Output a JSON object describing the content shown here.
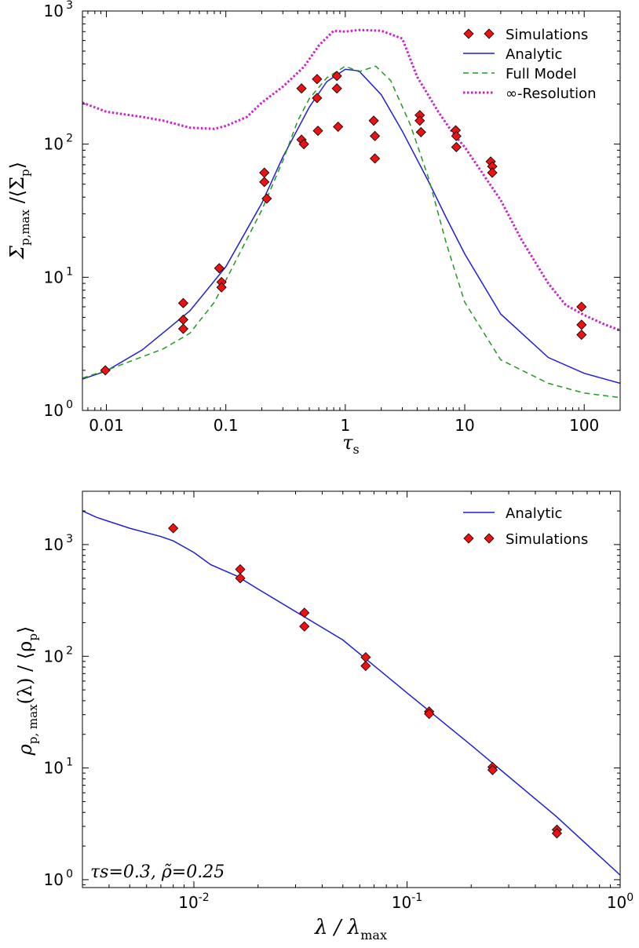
{
  "chart_data": [
    {
      "type": "scatter",
      "xscale": "log",
      "yscale": "log",
      "xlim": [
        0.0063,
        200
      ],
      "ylim": [
        1,
        1000
      ],
      "xlabel": "τs",
      "ylabel": "Σp,max /⟨Σp⟩",
      "xtick_values": [
        0.01,
        0.1,
        1,
        10,
        100
      ],
      "xtick_labels": [
        "0.01",
        "0.1",
        "1",
        "10",
        "100"
      ],
      "ytick_values": [
        1,
        10,
        100,
        1000
      ],
      "ytick_labels": [
        "10",
        "10",
        "10",
        "10"
      ],
      "ytick_exponents": [
        "0",
        "1",
        "2",
        "3"
      ],
      "legend_position": "top-right",
      "legend": [
        "Simulations",
        "Analytic",
        "Full Model",
        "∞-Resolution"
      ],
      "grid": false,
      "series": [
        {
          "name": "Simulations",
          "kind": "markers",
          "color": "#ee1111",
          "points": [
            [
              0.0098,
              2.0
            ],
            [
              0.044,
              6.4
            ],
            [
              0.044,
              4.8
            ],
            [
              0.044,
              4.1
            ],
            [
              0.088,
              11.7
            ],
            [
              0.092,
              9.2
            ],
            [
              0.092,
              8.4
            ],
            [
              0.21,
              61
            ],
            [
              0.21,
              52
            ],
            [
              0.22,
              39
            ],
            [
              0.43,
              262
            ],
            [
              0.43,
              108
            ],
            [
              0.45,
              100
            ],
            [
              0.58,
              308
            ],
            [
              0.58,
              222
            ],
            [
              0.59,
              126
            ],
            [
              0.85,
              325
            ],
            [
              0.85,
              262
            ],
            [
              0.87,
              135
            ],
            [
              1.73,
              150
            ],
            [
              1.77,
              115
            ],
            [
              1.77,
              78
            ],
            [
              4.2,
              165
            ],
            [
              4.2,
              150
            ],
            [
              4.3,
              123
            ],
            [
              8.4,
              127
            ],
            [
              8.5,
              115
            ],
            [
              8.5,
              95
            ],
            [
              16.5,
              74
            ],
            [
              17,
              68
            ],
            [
              17,
              61
            ],
            [
              95,
              6.0
            ],
            [
              95,
              4.4
            ],
            [
              95,
              3.7
            ]
          ]
        },
        {
          "name": "Analytic",
          "kind": "line",
          "color": "#1f1fdd",
          "points": [
            [
              0.0063,
              1.72
            ],
            [
              0.01,
              1.98
            ],
            [
              0.02,
              2.85
            ],
            [
              0.05,
              5.6
            ],
            [
              0.1,
              12
            ],
            [
              0.2,
              36
            ],
            [
              0.3,
              80
            ],
            [
              0.5,
              190
            ],
            [
              0.7,
              295
            ],
            [
              1.0,
              365
            ],
            [
              1.3,
              355
            ],
            [
              2.0,
              235
            ],
            [
              3.0,
              125
            ],
            [
              5.0,
              52
            ],
            [
              7.0,
              28
            ],
            [
              10,
              15
            ],
            [
              20,
              5.3
            ],
            [
              50,
              2.5
            ],
            [
              100,
              1.9
            ],
            [
              200,
              1.6
            ]
          ]
        },
        {
          "name": "Full Model",
          "kind": "line",
          "color": "#229922",
          "points": [
            [
              0.0063,
              1.75
            ],
            [
              0.01,
              2.0
            ],
            [
              0.03,
              2.9
            ],
            [
              0.05,
              3.8
            ],
            [
              0.08,
              6.5
            ],
            [
              0.1,
              9.5
            ],
            [
              0.2,
              32
            ],
            [
              0.3,
              75
            ],
            [
              0.4,
              150
            ],
            [
              0.5,
              220
            ],
            [
              0.7,
              315
            ],
            [
              1.0,
              385
            ],
            [
              1.3,
              350
            ],
            [
              1.8,
              385
            ],
            [
              2.4,
              300
            ],
            [
              3.5,
              140
            ],
            [
              5.0,
              55
            ],
            [
              7.0,
              18
            ],
            [
              10,
              6.5
            ],
            [
              20,
              2.4
            ],
            [
              50,
              1.6
            ],
            [
              100,
              1.35
            ],
            [
              200,
              1.25
            ]
          ]
        },
        {
          "name": "∞-Resolution",
          "kind": "line",
          "color": "#cc22cc",
          "points": [
            [
              0.0063,
              205
            ],
            [
              0.01,
              175
            ],
            [
              0.02,
              160
            ],
            [
              0.03,
              150
            ],
            [
              0.05,
              133
            ],
            [
              0.08,
              130
            ],
            [
              0.1,
              137
            ],
            [
              0.15,
              160
            ],
            [
              0.2,
              205
            ],
            [
              0.3,
              270
            ],
            [
              0.45,
              380
            ],
            [
              0.6,
              550
            ],
            [
              0.8,
              710
            ],
            [
              1.0,
              700
            ],
            [
              1.3,
              720
            ],
            [
              2.0,
              710
            ],
            [
              3.0,
              620
            ],
            [
              4.0,
              320
            ],
            [
              6.0,
              175
            ],
            [
              8.0,
              120
            ],
            [
              10,
              95
            ],
            [
              20,
              38
            ],
            [
              30,
              19
            ],
            [
              50,
              9.0
            ],
            [
              70,
              6.2
            ],
            [
              100,
              5.2
            ],
            [
              150,
              4.4
            ],
            [
              200,
              4.0
            ]
          ]
        }
      ]
    },
    {
      "type": "scatter",
      "xscale": "log",
      "yscale": "log",
      "xlim": [
        0.003,
        1
      ],
      "ylim": [
        0.85,
        3000
      ],
      "xlabel": "λ / λmax",
      "ylabel": "ρp, max(λ) / ⟨ρp⟩",
      "xtick_values": [
        0.01,
        0.1,
        1
      ],
      "xtick_labels": [
        "10",
        "10",
        "10"
      ],
      "xtick_exponents": [
        "-2",
        "-1",
        "0"
      ],
      "ytick_values": [
        1,
        10,
        100,
        1000
      ],
      "ytick_labels": [
        "10",
        "10",
        "10",
        "10"
      ],
      "ytick_exponents": [
        "0",
        "1",
        "2",
        "3"
      ],
      "legend_position": "top-right",
      "legend": [
        "Analytic",
        "Simulations"
      ],
      "annotation": "τs=0.3, ρ̃=0.25",
      "grid": false,
      "series": [
        {
          "name": "Analytic",
          "kind": "line",
          "color": "#1f1fdd",
          "points": [
            [
              0.003,
              2000
            ],
            [
              0.0035,
              1750
            ],
            [
              0.005,
              1400
            ],
            [
              0.007,
              1180
            ],
            [
              0.008,
              1080
            ],
            [
              0.01,
              850
            ],
            [
              0.012,
              660
            ],
            [
              0.016,
              520
            ],
            [
              0.02,
              400
            ],
            [
              0.05,
              140
            ],
            [
              0.1,
              47
            ],
            [
              0.2,
              16
            ],
            [
              0.5,
              3.7
            ],
            [
              1.0,
              1.1
            ]
          ]
        },
        {
          "name": "Simulations",
          "kind": "markers",
          "color": "#ee1111",
          "points": [
            [
              0.008,
              1400
            ],
            [
              0.0165,
              600
            ],
            [
              0.0165,
              500
            ],
            [
              0.033,
              245
            ],
            [
              0.033,
              185
            ],
            [
              0.064,
              98
            ],
            [
              0.064,
              82
            ],
            [
              0.127,
              32
            ],
            [
              0.127,
              30.5
            ],
            [
              0.252,
              10.2
            ],
            [
              0.252,
              9.6
            ],
            [
              0.505,
              2.8
            ],
            [
              0.505,
              2.6
            ]
          ]
        }
      ]
    }
  ]
}
